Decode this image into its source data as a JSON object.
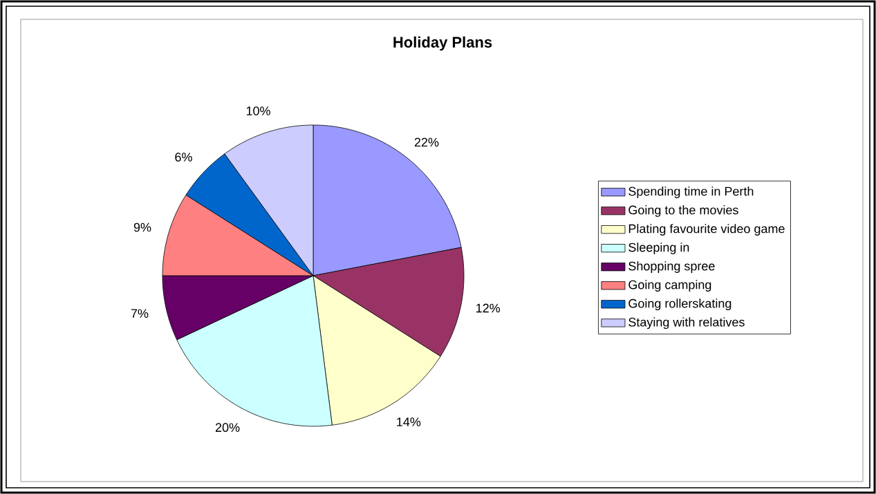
{
  "chart_data": {
    "type": "pie",
    "title": "Holiday Plans",
    "categories": [
      "Spending time in Perth",
      "Going to the movies",
      "Plating favourite video game",
      "Sleeping in",
      "Shopping spree",
      "Going camping",
      "Going rollerskating",
      "Staying with relatives"
    ],
    "values": [
      22,
      12,
      14,
      20,
      7,
      9,
      6,
      10
    ],
    "colors": [
      "#9999ff",
      "#993366",
      "#ffffcc",
      "#ccffff",
      "#660066",
      "#ff8080",
      "#0066cc",
      "#ccccff"
    ],
    "value_labels": [
      "22%",
      "12%",
      "14%",
      "20%",
      "7%",
      "9%",
      "6%",
      "10%"
    ],
    "legend": "right"
  }
}
